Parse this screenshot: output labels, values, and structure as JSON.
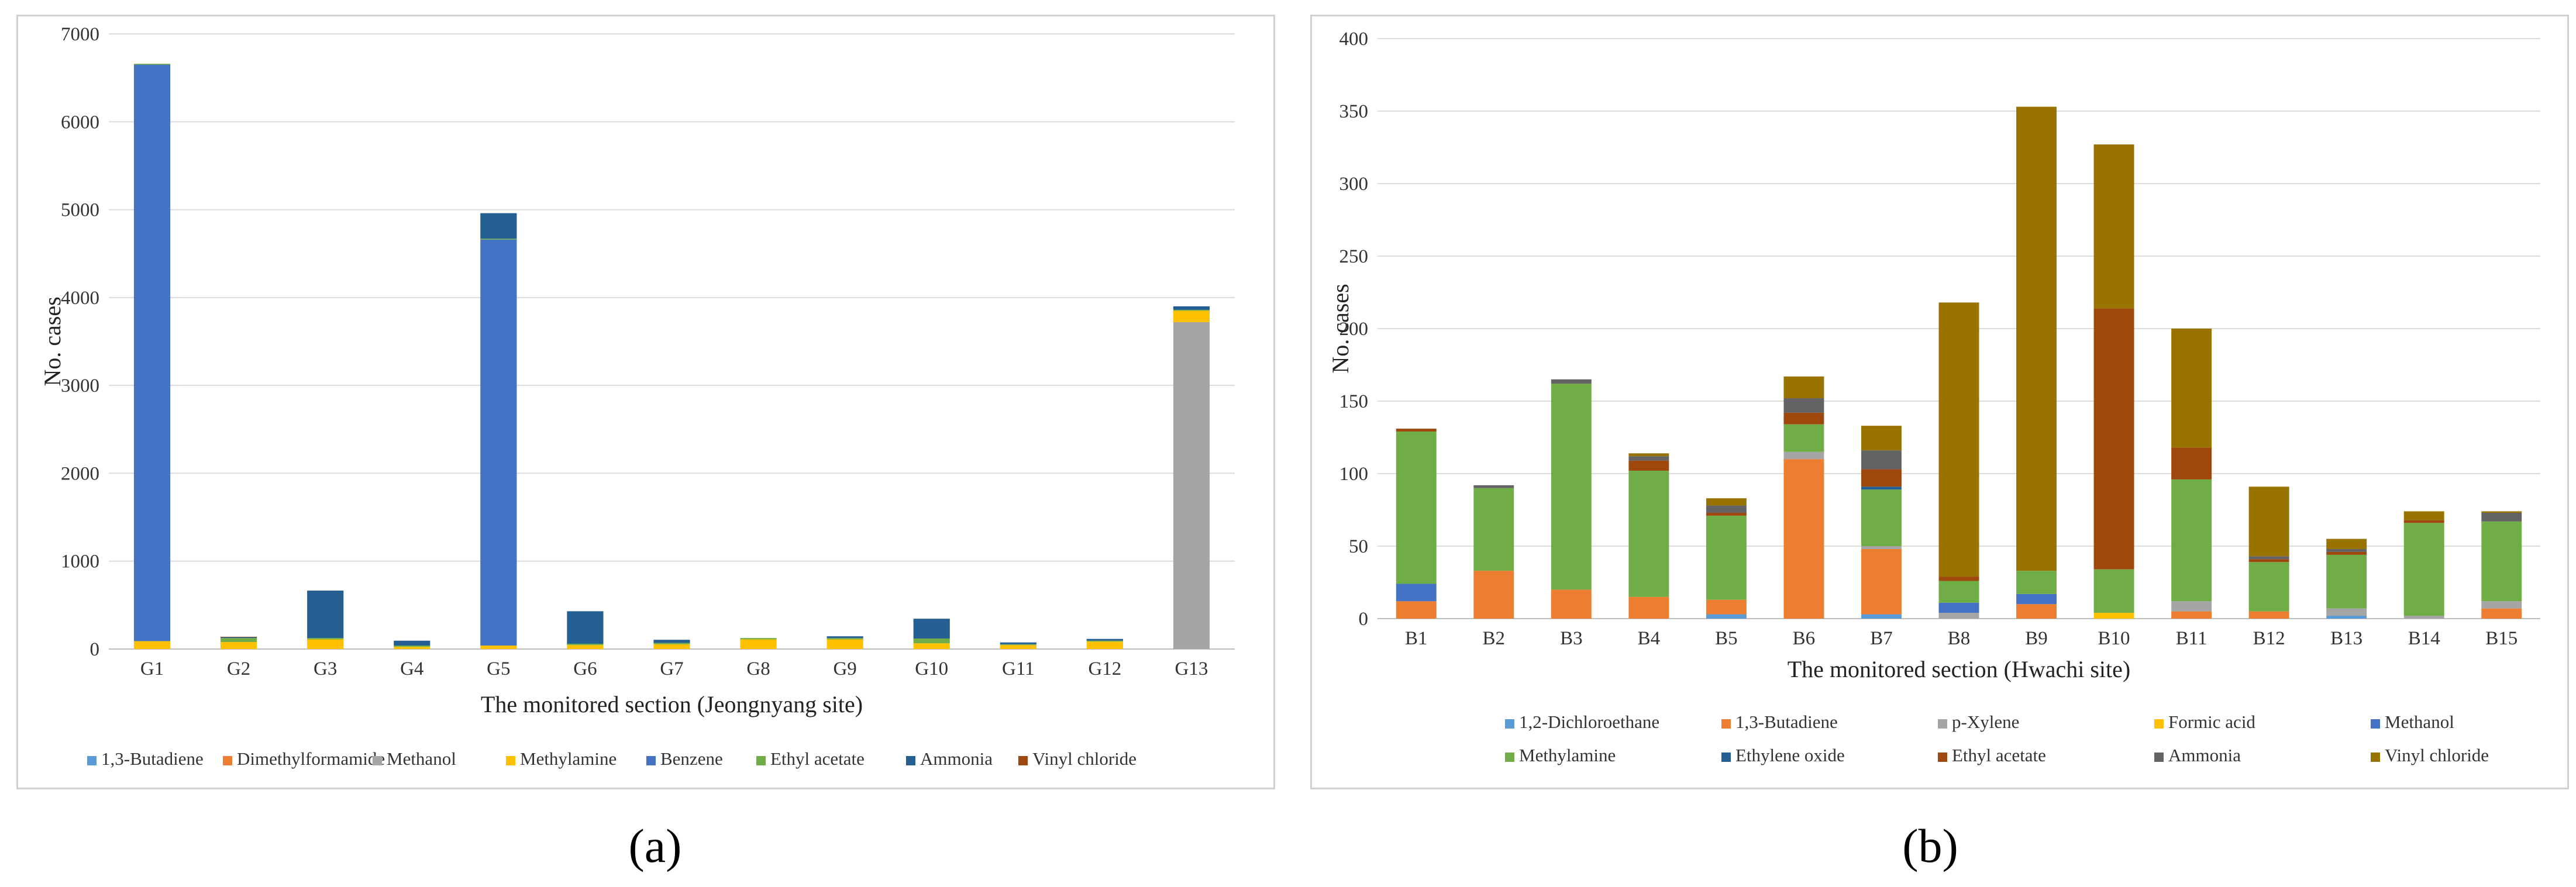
{
  "labels": {
    "a": "(a)",
    "b": "(b)"
  },
  "chart_data": [
    {
      "type": "bar",
      "stacked": true,
      "title": "",
      "xlabel": "The monitored section (Jeongnyang site)",
      "ylabel": "No. cases",
      "ylim": [
        0,
        7000
      ],
      "yticks": [
        0,
        1000,
        2000,
        3000,
        4000,
        5000,
        6000,
        7000
      ],
      "grid": true,
      "legend_position": "bottom",
      "categories": [
        "G1",
        "G2",
        "G3",
        "G4",
        "G5",
        "G6",
        "G7",
        "G8",
        "G9",
        "G10",
        "G11",
        "G12",
        "G13"
      ],
      "series": [
        {
          "name": "1,3-Butadiene",
          "color": "#5B9BD5",
          "values": [
            0,
            0,
            0,
            0,
            0,
            0,
            0,
            0,
            0,
            0,
            0,
            0,
            0
          ]
        },
        {
          "name": "Dimethylformamide",
          "color": "#ED7D31",
          "values": [
            0,
            0,
            0,
            0,
            0,
            0,
            0,
            0,
            0,
            0,
            0,
            0,
            0
          ]
        },
        {
          "name": "Methanol",
          "color": "#A5A5A5",
          "values": [
            0,
            0,
            0,
            0,
            0,
            0,
            0,
            0,
            0,
            0,
            0,
            0,
            3720
          ]
        },
        {
          "name": "Methylamine",
          "color": "#FFC000",
          "values": [
            90,
            80,
            110,
            25,
            40,
            45,
            55,
            110,
            110,
            65,
            45,
            85,
            130
          ]
        },
        {
          "name": "Benzene",
          "color": "#4472C4",
          "values": [
            6560,
            0,
            0,
            0,
            4620,
            0,
            0,
            0,
            0,
            0,
            0,
            0,
            0
          ]
        },
        {
          "name": "Ethyl acetate",
          "color": "#70AD47",
          "values": [
            10,
            45,
            15,
            15,
            10,
            15,
            15,
            15,
            15,
            55,
            10,
            10,
            10
          ]
        },
        {
          "name": "Ammonia",
          "color": "#255E91",
          "values": [
            0,
            10,
            540,
            55,
            290,
            370,
            35,
            0,
            20,
            225,
            20,
            20,
            40
          ]
        },
        {
          "name": "Vinyl chloride",
          "color": "#9E480E",
          "values": [
            0,
            5,
            0,
            0,
            0,
            0,
            0,
            0,
            0,
            0,
            0,
            0,
            0
          ]
        }
      ]
    },
    {
      "type": "bar",
      "stacked": true,
      "title": "",
      "xlabel": "The monitored section (Hwachi site)",
      "ylabel": "No. cases",
      "ylim": [
        0,
        400
      ],
      "yticks": [
        0,
        50,
        100,
        150,
        200,
        250,
        300,
        350,
        400
      ],
      "grid": true,
      "legend_position": "bottom",
      "categories": [
        "B1",
        "B2",
        "B3",
        "B4",
        "B5",
        "B6",
        "B7",
        "B8",
        "B9",
        "B10",
        "B11",
        "B12",
        "B13",
        "B14",
        "B15"
      ],
      "series": [
        {
          "name": "1,2-Dichloroethane",
          "color": "#5B9BD5",
          "values": [
            0,
            0,
            0,
            0,
            3,
            0,
            3,
            0,
            0,
            0,
            0,
            0,
            2,
            0,
            0
          ]
        },
        {
          "name": "1,3-Butadiene",
          "color": "#ED7D31",
          "values": [
            12,
            33,
            20,
            15,
            10,
            110,
            45,
            0,
            10,
            0,
            5,
            5,
            0,
            0,
            7
          ]
        },
        {
          "name": "p-Xylene",
          "color": "#A5A5A5",
          "values": [
            0,
            0,
            0,
            0,
            0,
            5,
            2,
            4,
            0,
            0,
            7,
            0,
            5,
            2,
            5
          ]
        },
        {
          "name": "Formic acid",
          "color": "#FFC000",
          "values": [
            0,
            0,
            0,
            0,
            0,
            0,
            0,
            0,
            0,
            4,
            0,
            0,
            0,
            0,
            0
          ]
        },
        {
          "name": "Methanol",
          "color": "#4472C4",
          "values": [
            12,
            0,
            0,
            0,
            0,
            0,
            0,
            7,
            7,
            0,
            0,
            0,
            0,
            0,
            0
          ]
        },
        {
          "name": "Methylamine",
          "color": "#70AD47",
          "values": [
            105,
            57,
            142,
            87,
            58,
            19,
            39,
            15,
            16,
            30,
            84,
            34,
            37,
            64,
            55
          ]
        },
        {
          "name": "Ethylene oxide",
          "color": "#255E91",
          "values": [
            0,
            0,
            0,
            0,
            0,
            0,
            2,
            0,
            0,
            0,
            0,
            0,
            0,
            0,
            0
          ]
        },
        {
          "name": "Ethyl acetate",
          "color": "#9E480E",
          "values": [
            2,
            0,
            0,
            7,
            2,
            8,
            12,
            3,
            0,
            180,
            22,
            2,
            2,
            2,
            0
          ]
        },
        {
          "name": "Ammonia",
          "color": "#636363",
          "values": [
            0,
            2,
            3,
            3,
            5,
            10,
            13,
            0,
            0,
            0,
            0,
            2,
            2,
            0,
            6
          ]
        },
        {
          "name": "Vinyl chloride",
          "color": "#997300",
          "values": [
            0,
            0,
            0,
            2,
            5,
            15,
            17,
            189,
            320,
            113,
            82,
            48,
            7,
            6,
            1
          ]
        }
      ]
    }
  ]
}
